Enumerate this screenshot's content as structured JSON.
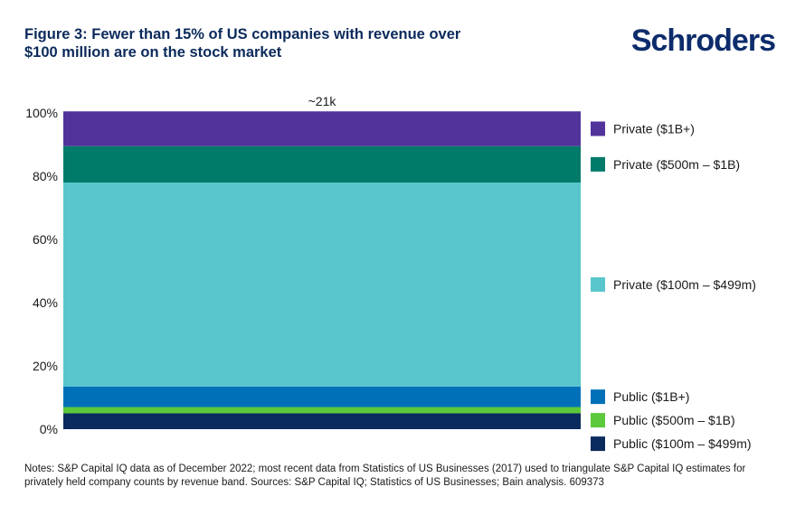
{
  "title": "Figure 3: Fewer than 15% of US companies with revenue over $100 million are on the stock market",
  "brand": "Schroders",
  "notes": "Notes: S&P Capital IQ data as of December 2022; most recent data from Statistics of US Businesses (2017) used to triangulate S&P Capital IQ estimates for privately held company counts by revenue band. Sources: S&P Capital IQ; Statistics of US Businesses; Bain analysis. 609373",
  "chart_data": {
    "type": "bar",
    "stacked": true,
    "categories": [
      "~21k"
    ],
    "bar_label": "~21k",
    "ylim": [
      0,
      100
    ],
    "yticks": [
      0,
      20,
      40,
      60,
      80,
      100
    ],
    "ytick_labels": [
      "0%",
      "20%",
      "40%",
      "60%",
      "80%",
      "100%"
    ],
    "series": [
      {
        "name": "Public ($100m – $499m)",
        "values": [
          5
        ],
        "color": "#0b2b5e"
      },
      {
        "name": "Public ($500m – $1B)",
        "values": [
          2
        ],
        "color": "#5cc83b"
      },
      {
        "name": "Public ($1B+)",
        "values": [
          6.5
        ],
        "color": "#0070b8"
      },
      {
        "name": "Private ($100m – $499m)",
        "values": [
          64.5
        ],
        "color": "#58c6cc"
      },
      {
        "name": "Private ($500m – $1B)",
        "values": [
          11.5
        ],
        "color": "#007a6a"
      },
      {
        "name": "Private ($1B+)",
        "values": [
          11
        ],
        "color": "#51339b"
      }
    ]
  }
}
